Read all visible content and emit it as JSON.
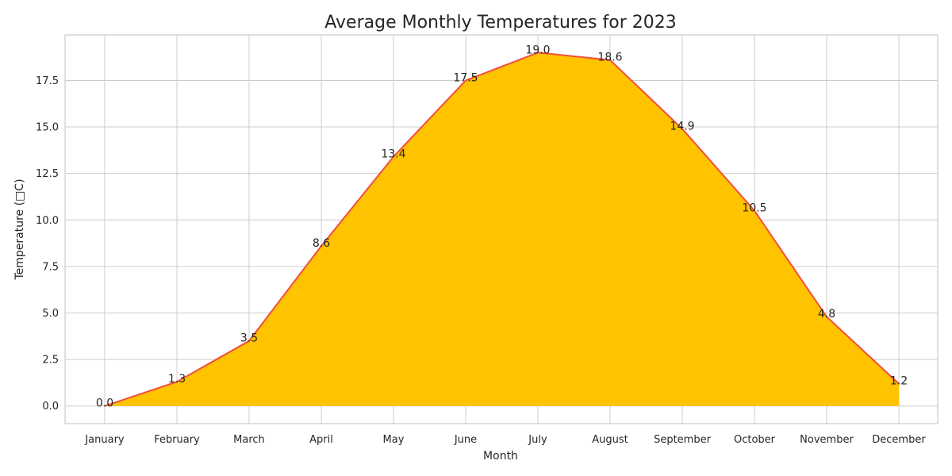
{
  "chart_data": {
    "type": "area",
    "title": "Average Monthly Temperatures for 2023",
    "xlabel": "Month",
    "ylabel": "Temperature (□C)",
    "categories": [
      "January",
      "February",
      "March",
      "April",
      "May",
      "June",
      "July",
      "August",
      "September",
      "October",
      "November",
      "December"
    ],
    "values": [
      0.0,
      1.3,
      3.5,
      8.6,
      13.4,
      17.5,
      19.0,
      18.6,
      14.9,
      10.5,
      4.8,
      1.2
    ],
    "data_labels": [
      "0.0",
      "1.3",
      "3.5",
      "8.6",
      "13.4",
      "17.5",
      "19.0",
      "18.6",
      "14.9",
      "10.5",
      "4.8",
      "1.2"
    ],
    "ylim": [
      -0.95,
      19.95
    ],
    "yticks": [
      0.0,
      2.5,
      5.0,
      7.5,
      10.0,
      12.5,
      15.0,
      17.5
    ],
    "ytick_labels": [
      "0.0",
      "2.5",
      "5.0",
      "7.5",
      "10.0",
      "12.5",
      "15.0",
      "17.5"
    ],
    "grid": true,
    "legend": "none",
    "colors": {
      "fill": "#ffc300",
      "line": "#f04e3e",
      "grid": "#cccccc",
      "text": "#262626"
    }
  }
}
